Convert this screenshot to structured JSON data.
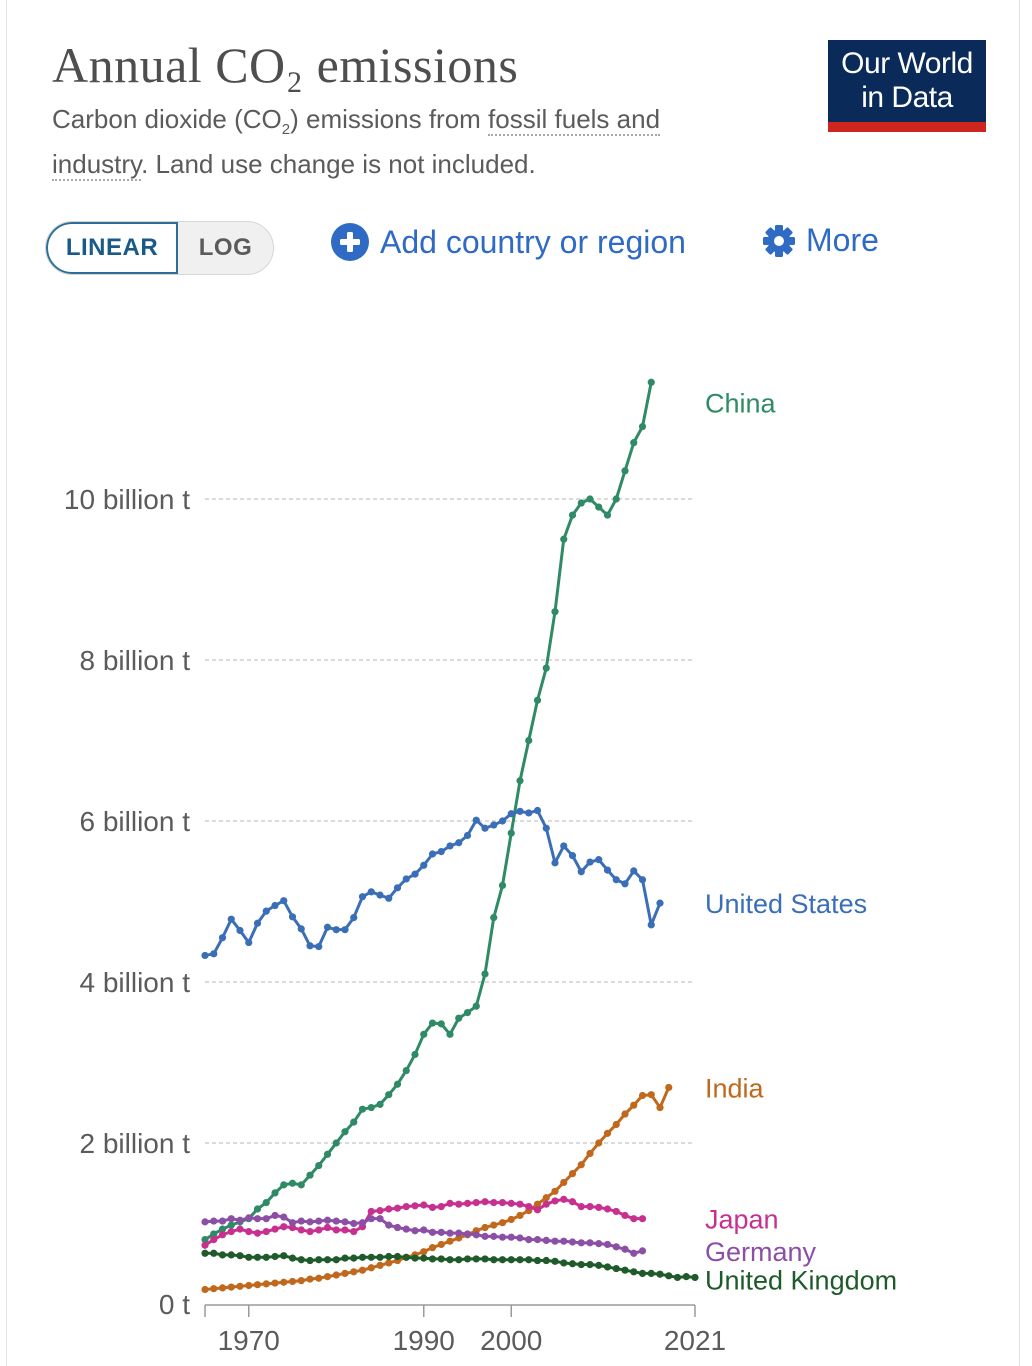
{
  "header": {
    "title": "Annual CO₂ emissions",
    "subtitle_part1": "Carbon dioxide (CO",
    "subtitle_sub": "2",
    "subtitle_part2": ") emissions from ",
    "subtitle_link": "fossil fuels and industry",
    "subtitle_part3": ". Land use change is not included.",
    "logo_line1": "Our World",
    "logo_line2": "in Data"
  },
  "controls": {
    "linear_label": "LINEAR",
    "log_label": "LOG",
    "add_label": "Add country or region",
    "more_label": "More"
  },
  "colors": {
    "accent": "#2f6bc4",
    "logo_bg": "#0a2a5a",
    "logo_bar": "#ce261e"
  },
  "chart_data": {
    "type": "line",
    "title": "Annual CO₂ emissions",
    "xlabel": "",
    "ylabel": "",
    "xlim": [
      1965,
      2021
    ],
    "ylim": [
      0,
      12000000000
    ],
    "grid": true,
    "x_ticks": [
      1970,
      1990,
      2000,
      2021
    ],
    "y_ticks": [
      {
        "value": 0,
        "label": "0 t"
      },
      {
        "value": 2000000000,
        "label": "2 billion t"
      },
      {
        "value": 4000000000,
        "label": "4 billion t"
      },
      {
        "value": 6000000000,
        "label": "6 billion t"
      },
      {
        "value": 8000000000,
        "label": "8 billion t"
      },
      {
        "value": 10000000000,
        "label": "10 billion t"
      }
    ],
    "x": [
      1965,
      1966,
      1967,
      1968,
      1969,
      1970,
      1971,
      1972,
      1973,
      1974,
      1975,
      1976,
      1977,
      1978,
      1979,
      1980,
      1981,
      1982,
      1983,
      1984,
      1985,
      1986,
      1987,
      1988,
      1989,
      1990,
      1991,
      1992,
      1993,
      1994,
      1995,
      1996,
      1997,
      1998,
      1999,
      2000,
      2001,
      2002,
      2003,
      2004,
      2005,
      2006,
      2007,
      2008,
      2009,
      2010,
      2011,
      2012,
      2013,
      2014,
      2015,
      2016,
      2017,
      2018,
      2019,
      2020,
      2021
    ],
    "series": [
      {
        "name": "China",
        "color": "#2f8a66",
        "values": [
          0.8,
          0.87,
          0.93,
          0.98,
          1.02,
          1.06,
          1.18,
          1.26,
          1.38,
          1.48,
          1.5,
          1.48,
          1.6,
          1.72,
          1.86,
          2.0,
          2.14,
          2.26,
          2.42,
          2.44,
          2.48,
          2.6,
          2.73,
          2.9,
          3.1,
          3.35,
          3.49,
          3.48,
          3.35,
          3.55,
          3.62,
          3.7,
          4.1,
          4.8,
          5.2,
          5.85,
          6.5,
          7.0,
          7.5,
          7.9,
          8.6,
          9.5,
          9.8,
          9.95,
          10.0,
          9.9,
          9.8,
          10.0,
          10.35,
          10.7,
          10.9,
          11.45,
          null,
          null,
          null,
          null,
          null
        ]
      },
      {
        "name": "United States",
        "color": "#3a6fb8",
        "values": [
          4.33,
          4.35,
          4.55,
          4.78,
          4.64,
          4.49,
          4.73,
          4.88,
          4.95,
          5.01,
          4.81,
          4.66,
          4.45,
          4.44,
          4.68,
          4.65,
          4.65,
          4.8,
          5.06,
          5.12,
          5.08,
          5.04,
          5.17,
          5.28,
          5.34,
          5.45,
          5.59,
          5.62,
          5.69,
          5.73,
          5.82,
          6.01,
          5.91,
          5.95,
          6.0,
          6.09,
          6.12,
          6.1,
          6.13,
          5.91,
          5.48,
          5.69,
          5.57,
          5.37,
          5.49,
          5.52,
          5.39,
          5.27,
          5.22,
          5.38,
          5.27,
          4.71,
          4.98,
          null,
          null,
          null,
          null
        ]
      },
      {
        "name": "India",
        "color": "#c0681c",
        "values": [
          0.18,
          0.19,
          0.2,
          0.21,
          0.22,
          0.23,
          0.24,
          0.25,
          0.26,
          0.27,
          0.28,
          0.29,
          0.31,
          0.32,
          0.34,
          0.36,
          0.38,
          0.4,
          0.42,
          0.45,
          0.48,
          0.51,
          0.54,
          0.58,
          0.61,
          0.65,
          0.7,
          0.74,
          0.78,
          0.82,
          0.86,
          0.91,
          0.95,
          0.98,
          1.01,
          1.05,
          1.1,
          1.16,
          1.24,
          1.32,
          1.4,
          1.51,
          1.62,
          1.73,
          1.87,
          2.0,
          2.12,
          2.23,
          2.36,
          2.47,
          2.59,
          2.6,
          2.44,
          2.69,
          null,
          null,
          null
        ]
      },
      {
        "name": "Japan",
        "color": "#c8308f",
        "values": [
          0.73,
          0.8,
          0.86,
          0.9,
          0.93,
          0.9,
          0.88,
          0.9,
          0.93,
          0.96,
          0.95,
          0.92,
          0.9,
          0.92,
          0.95,
          0.92,
          0.92,
          0.9,
          0.96,
          1.15,
          1.16,
          1.18,
          1.19,
          1.21,
          1.22,
          1.23,
          1.2,
          1.21,
          1.25,
          1.24,
          1.25,
          1.26,
          1.27,
          1.26,
          1.26,
          1.25,
          1.24,
          1.21,
          1.17,
          1.24,
          1.28,
          1.3,
          1.27,
          1.21,
          1.21,
          1.2,
          1.18,
          1.15,
          1.1,
          1.06,
          1.06,
          null,
          null,
          null,
          null,
          null,
          null
        ]
      },
      {
        "name": "Germany",
        "color": "#8c4fa6",
        "values": [
          1.02,
          1.03,
          1.03,
          1.06,
          1.04,
          1.07,
          1.06,
          1.06,
          1.1,
          1.08,
          1.01,
          1.03,
          1.02,
          1.03,
          1.04,
          1.03,
          1.02,
          1.0,
          1.01,
          1.06,
          1.06,
          0.98,
          0.95,
          0.93,
          0.91,
          0.92,
          0.89,
          0.89,
          0.88,
          0.88,
          0.87,
          0.86,
          0.84,
          0.84,
          0.83,
          0.83,
          0.82,
          0.8,
          0.8,
          0.79,
          0.78,
          0.78,
          0.77,
          0.76,
          0.76,
          0.75,
          0.74,
          0.71,
          0.68,
          0.63,
          0.66,
          null,
          null,
          null,
          null,
          null,
          null
        ]
      },
      {
        "name": "United Kingdom",
        "color": "#1f5a2a",
        "values": [
          0.63,
          0.63,
          0.61,
          0.61,
          0.6,
          0.58,
          0.58,
          0.58,
          0.59,
          0.6,
          0.57,
          0.55,
          0.54,
          0.55,
          0.55,
          0.55,
          0.57,
          0.57,
          0.58,
          0.58,
          0.58,
          0.59,
          0.59,
          0.58,
          0.57,
          0.57,
          0.56,
          0.56,
          0.55,
          0.55,
          0.56,
          0.56,
          0.56,
          0.55,
          0.55,
          0.55,
          0.55,
          0.55,
          0.54,
          0.54,
          0.53,
          0.51,
          0.5,
          0.49,
          0.49,
          0.48,
          0.46,
          0.44,
          0.42,
          0.4,
          0.38,
          0.38,
          0.37,
          0.35,
          0.33,
          0.34,
          0.33
        ]
      }
    ],
    "series_note": "values in billion tonnes"
  }
}
